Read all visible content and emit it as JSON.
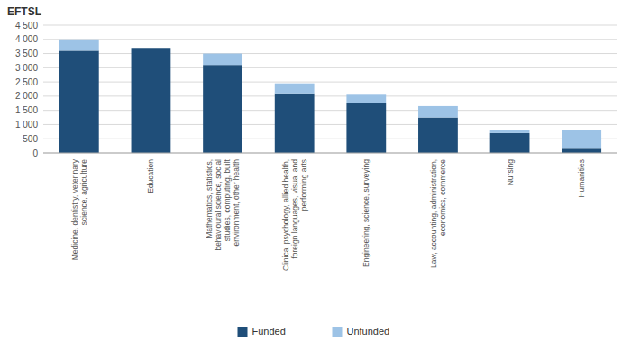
{
  "chart_data": {
    "type": "bar",
    "stacked": true,
    "ylabel": "EFTSL",
    "categories": [
      "Medicine, dentistry, veterinary\nscience, agriculture",
      "Education",
      "Mathematics, statistics,\nbehavioural science, social\nstudies, computing, built\nenvironment, other health",
      "Clinical psychology, allied health,\nforeign languages, visual and\nperforming arts",
      "Engineering, science, surveying",
      "Law, accounting, administration,\neconomics, commerce",
      "Nursing",
      "Humanities"
    ],
    "series": [
      {
        "name": "Funded",
        "color": "#1f4e79",
        "values": [
          3600,
          3700,
          3100,
          2100,
          1750,
          1250,
          700,
          150
        ]
      },
      {
        "name": "Unfunded",
        "color": "#9dc3e6",
        "values": [
          400,
          0,
          400,
          350,
          300,
          400,
          100,
          650
        ]
      }
    ],
    "ylim": [
      0,
      4500
    ],
    "yticks": [
      0,
      500,
      {
        "value": 1000,
        "label": "1 000"
      },
      {
        "value": 1500,
        "label": "1 500"
      },
      {
        "value": 2000,
        "label": "2 000"
      },
      {
        "value": 2500,
        "label": "2 500"
      },
      {
        "value": 3000,
        "label": "3 000"
      },
      {
        "value": 3500,
        "label": "3 500"
      },
      {
        "value": 4000,
        "label": "4 000"
      },
      {
        "value": 4500,
        "label": "4 500"
      }
    ],
    "grid": true,
    "legend": "bottom"
  }
}
